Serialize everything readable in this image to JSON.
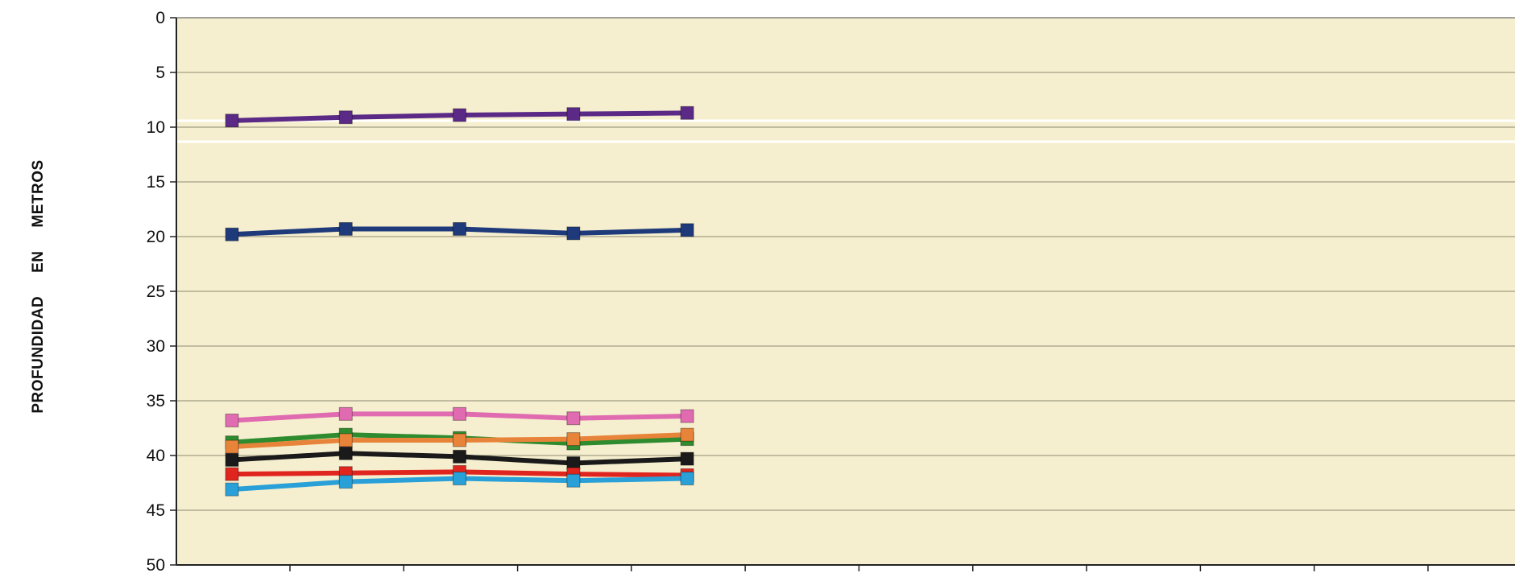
{
  "chart_data": {
    "type": "line",
    "ylabel": "PROFUNDIDAD     EN     METROS",
    "ylim": [
      0,
      50
    ],
    "y_reversed": true,
    "yticks": [
      "0",
      "5",
      "10",
      "15",
      "20",
      "25",
      "30",
      "35",
      "40",
      "45",
      "50"
    ],
    "x": [
      1,
      2,
      3,
      4,
      5
    ],
    "grid": true,
    "background": "#f6efcf",
    "series": [
      {
        "color": "#5b2a86",
        "values": [
          9.4,
          9.1,
          8.9,
          8.8,
          8.7
        ]
      },
      {
        "color": "#1f3a7a",
        "values": [
          19.8,
          19.3,
          19.3,
          19.7,
          19.4
        ]
      },
      {
        "color": "#e06bb0",
        "values": [
          36.8,
          36.2,
          36.2,
          36.6,
          36.4
        ]
      },
      {
        "color": "#2e8b2e",
        "values": [
          38.8,
          38.1,
          38.4,
          38.9,
          38.5
        ]
      },
      {
        "color": "#e8843a",
        "values": [
          39.2,
          38.6,
          38.6,
          38.5,
          38.1
        ]
      },
      {
        "color": "#1a1a1a",
        "values": [
          40.4,
          39.8,
          40.1,
          40.7,
          40.3
        ]
      },
      {
        "color": "#e0251f",
        "values": [
          41.7,
          41.6,
          41.5,
          41.7,
          41.8
        ]
      },
      {
        "color": "#2aa0d8",
        "values": [
          43.1,
          42.4,
          42.1,
          42.3,
          42.1
        ]
      }
    ]
  }
}
